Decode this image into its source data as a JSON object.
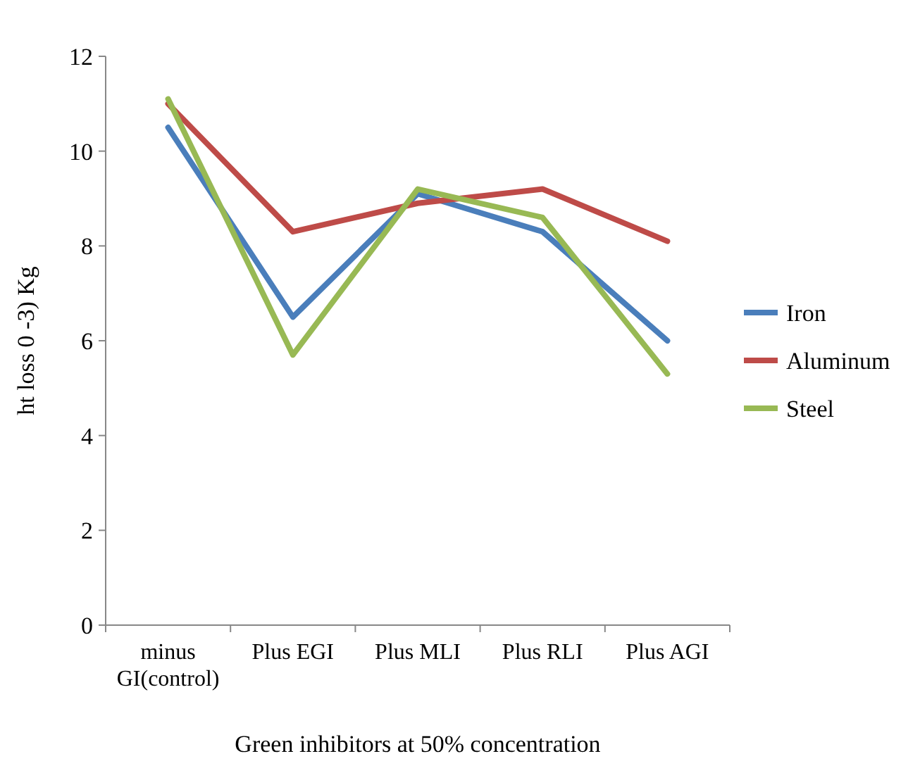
{
  "chart_data": {
    "type": "line",
    "xlabel": "Green inhibitors at 50% concentration",
    "ylabel": "ht loss 0 -3) Kg",
    "categories": [
      "minus GI(control)",
      "Plus EGI",
      "Plus MLI",
      "Plus RLI",
      "Plus AGI"
    ],
    "series": [
      {
        "name": "Iron",
        "color": "#4a7ebb",
        "values": [
          10.5,
          6.5,
          9.1,
          8.3,
          6.0
        ]
      },
      {
        "name": "Aluminum",
        "color": "#be4b48",
        "values": [
          11.0,
          8.3,
          8.9,
          9.2,
          8.1
        ]
      },
      {
        "name": "Steel",
        "color": "#98b954",
        "values": [
          11.1,
          5.7,
          9.2,
          8.6,
          5.3
        ]
      }
    ],
    "ylim": [
      0,
      12
    ],
    "yticks": [
      0,
      2,
      4,
      6,
      8,
      10,
      12
    ],
    "grid": false,
    "legend": "right",
    "marker": "none",
    "line_style": "solid"
  }
}
